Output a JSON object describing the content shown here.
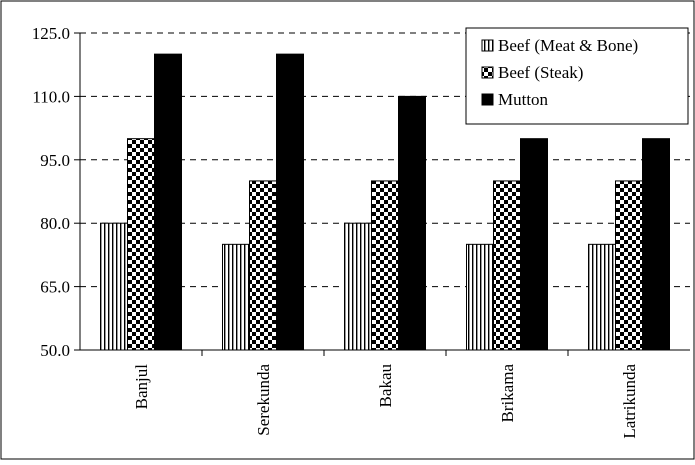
{
  "chart_data": {
    "type": "bar",
    "title": "",
    "xlabel": "",
    "ylabel": "",
    "categories": [
      "Banjul",
      "Serekunda",
      "Bakau",
      "Brikama",
      "Latrikunda"
    ],
    "series": [
      {
        "name": "Beef (Meat & Bone)",
        "pattern": "vertical-stripes",
        "values": [
          80,
          75,
          80,
          75,
          75
        ]
      },
      {
        "name": "Beef (Steak)",
        "pattern": "checkerboard",
        "values": [
          100,
          90,
          90,
          90,
          90
        ]
      },
      {
        "name": "Mutton",
        "pattern": "solid-black",
        "values": [
          120,
          120,
          110,
          100,
          100
        ]
      }
    ],
    "ylim": [
      50,
      125
    ],
    "yticks": [
      "50.0",
      "65.0",
      "80.0",
      "95.0",
      "110.0",
      "125.0"
    ],
    "grid": "horizontal-dashed",
    "legend_position": "top-right"
  }
}
